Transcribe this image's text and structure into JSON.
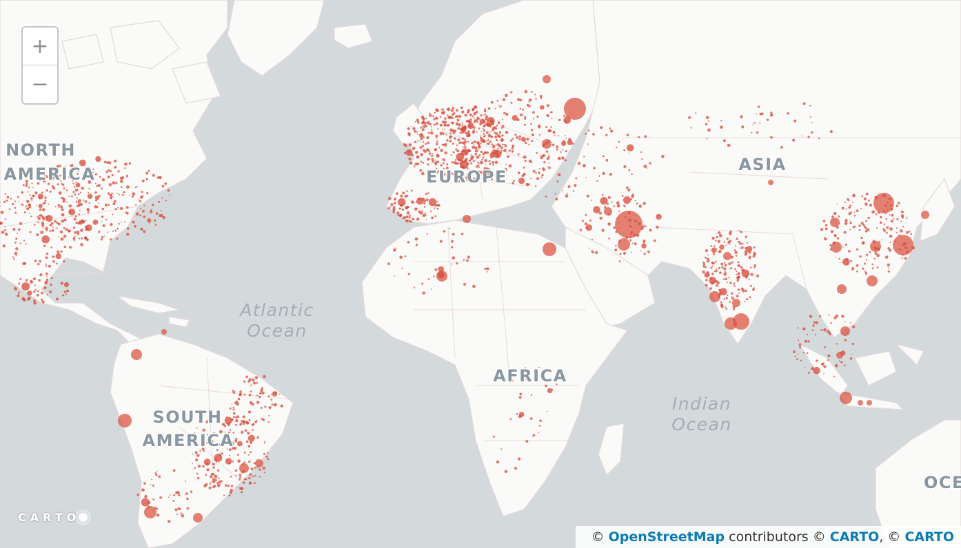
{
  "map": {
    "basemap": "CARTO Positron",
    "marker_color": "#d9503f",
    "land_color": "#fafaf8",
    "ocean_color": "#d4dadc"
  },
  "labels": {
    "continents": {
      "north_america_line1": "NORTH",
      "north_america_line2": "AMERICA",
      "south_america_line1": "SOUTH",
      "south_america_line2": "AMERICA",
      "europe": "EUROPE",
      "asia": "ASIA",
      "africa": "AFRICA",
      "oceania_partial": "OCE"
    },
    "oceans": {
      "atlantic_line1": "Atlantic",
      "atlantic_line2": "Ocean",
      "indian_line1": "Indian",
      "indian_line2": "Ocean"
    }
  },
  "zoom": {
    "zoom_in_label": "+",
    "zoom_out_label": "−"
  },
  "logo": {
    "text": "CARTO"
  },
  "attribution": {
    "prefix": "©",
    "osm_link": "OpenStreetMap",
    "contributors_text": "contributors ©",
    "carto_link_1": "CARTO",
    "separator": ", ©",
    "carto_link_2": "CARTO"
  }
}
